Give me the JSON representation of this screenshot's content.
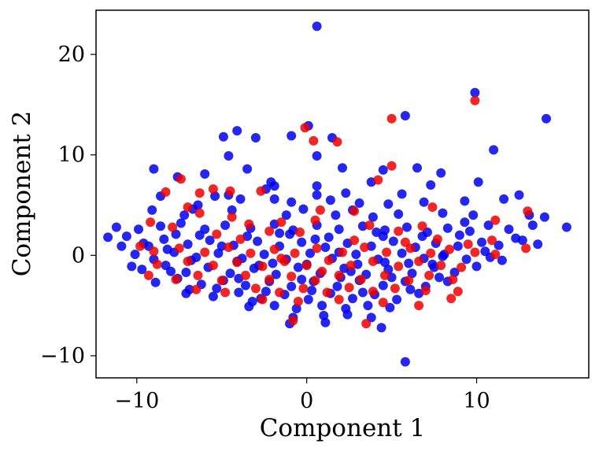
{
  "chart_data": {
    "type": "scatter",
    "title": "",
    "xlabel": "Component 1",
    "ylabel": "Component 2",
    "xlim": [
      -12.4,
      16.6
    ],
    "ylim": [
      -12.2,
      24.4
    ],
    "xticks": [
      -10,
      0,
      10
    ],
    "yticks": [
      -10,
      0,
      10,
      20
    ],
    "xtick_labels": [
      "−10",
      "0",
      "10"
    ],
    "ytick_labels": [
      "−10",
      "0",
      "10",
      "20"
    ],
    "grid": false,
    "legend": "none",
    "marker_alpha": 0.85,
    "series": [
      {
        "color": "#0000ee",
        "points": [
          [
            0.6,
            22.8
          ],
          [
            9.9,
            16.2
          ],
          [
            14.1,
            13.6
          ],
          [
            5.8,
            13.9
          ],
          [
            -4.1,
            12.4
          ],
          [
            -0.9,
            11.9
          ],
          [
            0.1,
            12.9
          ],
          [
            1.5,
            11.7
          ],
          [
            -3.0,
            11.7
          ],
          [
            -4.9,
            11.8
          ],
          [
            11.0,
            10.5
          ],
          [
            -4.6,
            9.9
          ],
          [
            0.6,
            9.9
          ],
          [
            -9.0,
            8.6
          ],
          [
            -6.0,
            8.1
          ],
          [
            -7.6,
            7.8
          ],
          [
            2.1,
            8.7
          ],
          [
            4.5,
            8.5
          ],
          [
            6.5,
            8.7
          ],
          [
            7.9,
            8.2
          ],
          [
            -3.5,
            8.6
          ],
          [
            -1.9,
            6.9
          ],
          [
            0.6,
            6.9
          ],
          [
            10.1,
            7.3
          ],
          [
            3.8,
            7.3
          ],
          [
            7.3,
            7.0
          ],
          [
            12.5,
            6.0
          ],
          [
            -8.6,
            5.9
          ],
          [
            -5.4,
            5.9
          ],
          [
            -1.9,
            5.6
          ],
          [
            -2.4,
            6.6
          ],
          [
            1.4,
            5.5
          ],
          [
            4.8,
            5.1
          ],
          [
            6.9,
            5.3
          ],
          [
            9.3,
            5.4
          ],
          [
            11.6,
            5.6
          ],
          [
            -9.1,
            4.5
          ],
          [
            -6.7,
            4.6
          ],
          [
            -4.4,
            4.5
          ],
          [
            -0.2,
            4.6
          ],
          [
            2.7,
            4.5
          ],
          [
            5.4,
            4.1
          ],
          [
            8.0,
            4.2
          ],
          [
            13.1,
            4.0
          ],
          [
            -11.2,
            2.8
          ],
          [
            -10.6,
            1.9
          ],
          [
            -9.9,
            2.6
          ],
          [
            -8.6,
            2.9
          ],
          [
            -7.4,
            3.2
          ],
          [
            -6.0,
            2.6
          ],
          [
            -4.8,
            3.0
          ],
          [
            -3.3,
            2.7
          ],
          [
            -1.9,
            3.1
          ],
          [
            -0.8,
            2.5
          ],
          [
            0.6,
            3.0
          ],
          [
            1.9,
            2.6
          ],
          [
            3.3,
            2.9
          ],
          [
            4.6,
            2.5
          ],
          [
            5.9,
            2.8
          ],
          [
            7.1,
            2.3
          ],
          [
            8.3,
            2.7
          ],
          [
            9.6,
            2.4
          ],
          [
            10.7,
            3.0
          ],
          [
            11.9,
            2.6
          ],
          [
            13.3,
            3.0
          ],
          [
            14.0,
            3.8
          ],
          [
            15.3,
            2.8
          ],
          [
            -11.7,
            1.8
          ],
          [
            -10.9,
            0.9
          ],
          [
            -9.6,
            1.2
          ],
          [
            -8.4,
            1.6
          ],
          [
            -7.0,
            1.1
          ],
          [
            -5.7,
            1.5
          ],
          [
            -4.3,
            1.0
          ],
          [
            -2.9,
            1.4
          ],
          [
            -1.6,
            0.9
          ],
          [
            -0.3,
            1.3
          ],
          [
            1.1,
            0.8
          ],
          [
            2.4,
            1.2
          ],
          [
            3.8,
            0.9
          ],
          [
            5.1,
            1.4
          ],
          [
            6.4,
            0.8
          ],
          [
            7.6,
            1.2
          ],
          [
            8.9,
            0.9
          ],
          [
            10.3,
            1.3
          ],
          [
            11.3,
            1.0
          ],
          [
            12.7,
            1.5
          ],
          [
            13.6,
            1.1
          ],
          [
            -10.1,
            0.1
          ],
          [
            -9.0,
            -0.4
          ],
          [
            -7.8,
            0.3
          ],
          [
            -6.5,
            -0.2
          ],
          [
            -5.2,
            0.2
          ],
          [
            -3.8,
            -0.3
          ],
          [
            -2.5,
            0.1
          ],
          [
            -1.2,
            -0.4
          ],
          [
            0.2,
            0.2
          ],
          [
            1.5,
            -0.3
          ],
          [
            2.9,
            0.1
          ],
          [
            4.2,
            -0.4
          ],
          [
            5.6,
            0.2
          ],
          [
            6.9,
            -0.3
          ],
          [
            8.1,
            0.1
          ],
          [
            9.4,
            -0.4
          ],
          [
            10.8,
            -0.2
          ],
          [
            -9.7,
            -1.4
          ],
          [
            -8.3,
            -1.0
          ],
          [
            -7.1,
            -1.7
          ],
          [
            -5.8,
            -1.2
          ],
          [
            -4.5,
            -1.8
          ],
          [
            -3.1,
            -1.3
          ],
          [
            -1.8,
            -1.9
          ],
          [
            -0.5,
            -1.2
          ],
          [
            0.8,
            -1.8
          ],
          [
            2.2,
            -1.3
          ],
          [
            3.5,
            -1.9
          ],
          [
            4.8,
            -1.4
          ],
          [
            6.2,
            -1.8
          ],
          [
            7.5,
            -1.2
          ],
          [
            8.7,
            -1.7
          ],
          [
            10.0,
            -1.1
          ],
          [
            -8.9,
            -2.7
          ],
          [
            -7.6,
            -2.3
          ],
          [
            -6.2,
            -2.9
          ],
          [
            -4.9,
            -2.5
          ],
          [
            -3.6,
            -3.0
          ],
          [
            -2.2,
            -2.6
          ],
          [
            -0.9,
            -3.1
          ],
          [
            0.4,
            -2.6
          ],
          [
            1.8,
            -3.1
          ],
          [
            3.1,
            -2.5
          ],
          [
            4.5,
            -3.0
          ],
          [
            5.8,
            -2.6
          ],
          [
            7.0,
            -3.1
          ],
          [
            8.3,
            -2.6
          ],
          [
            -7.1,
            -3.8
          ],
          [
            -5.5,
            -4.1
          ],
          [
            -4.0,
            -3.7
          ],
          [
            -2.7,
            -4.3
          ],
          [
            -1.3,
            -3.9
          ],
          [
            0.1,
            -4.4
          ],
          [
            1.4,
            -3.8
          ],
          [
            2.7,
            -4.3
          ],
          [
            4.0,
            -3.9
          ],
          [
            5.3,
            -4.4
          ],
          [
            6.6,
            -3.8
          ],
          [
            -3.4,
            -5.1
          ],
          [
            -1.9,
            -5.0
          ],
          [
            -0.6,
            -5.3
          ],
          [
            0.9,
            -5.0
          ],
          [
            2.3,
            -5.3
          ],
          [
            3.6,
            -5.0
          ],
          [
            4.9,
            -5.2
          ],
          [
            -0.8,
            -6.2
          ],
          [
            1.0,
            -6.0
          ],
          [
            2.4,
            -5.9
          ],
          [
            3.8,
            -6.2
          ],
          [
            -1.0,
            -6.8
          ],
          [
            1.1,
            -6.7
          ],
          [
            4.4,
            -7.2
          ],
          [
            5.8,
            -10.6
          ],
          [
            -6.4,
            5.0
          ],
          [
            -3.9,
            5.6
          ],
          [
            -0.9,
            5.3
          ],
          [
            2.3,
            6.2
          ],
          [
            5.6,
            6.1
          ],
          [
            -7.2,
            4.0
          ],
          [
            -1.2,
            4.0
          ],
          [
            3.9,
            3.8
          ],
          [
            9.8,
            4.0
          ],
          [
            -8.0,
            -1.6
          ],
          [
            -5.0,
            0.9
          ],
          [
            -3.5,
            1.9
          ],
          [
            -2.0,
            -0.8
          ],
          [
            0.0,
            -0.9
          ],
          [
            1.3,
            1.8
          ],
          [
            3.0,
            -0.9
          ],
          [
            4.5,
            1.9
          ],
          [
            6.0,
            -0.8
          ],
          [
            7.8,
            -2.2
          ],
          [
            9.0,
            2.0
          ],
          [
            -6.8,
            -0.5
          ],
          [
            -4.0,
            -2.3
          ],
          [
            -1.0,
            2.1
          ],
          [
            2.0,
            -2.2
          ],
          [
            5.0,
            -2.2
          ],
          [
            8.0,
            -0.1
          ],
          [
            11.5,
            -0.5
          ],
          [
            -9.3,
            0.9
          ],
          [
            -7.7,
            2.1
          ],
          [
            -5.3,
            -3.3
          ],
          [
            -2.8,
            -1.0
          ],
          [
            0.5,
            1.6
          ],
          [
            2.6,
            -1.6
          ],
          [
            4.1,
            2.3
          ],
          [
            6.8,
            1.9
          ],
          [
            9.3,
            3.3
          ],
          [
            12.3,
            1.7
          ],
          [
            -10.3,
            -1.1
          ],
          [
            -6.9,
            -3.4
          ],
          [
            -3.2,
            -4.6
          ],
          [
            0.3,
            -3.5
          ],
          [
            3.3,
            -3.7
          ],
          [
            6.1,
            -3.4
          ],
          [
            -2.1,
            7.3
          ],
          [
            1.7,
            4.0
          ],
          [
            -4.6,
            6.0
          ],
          [
            3.1,
            5.2
          ],
          [
            -6.3,
            2.0
          ],
          [
            7.4,
            -0.9
          ],
          [
            10.5,
            0.4
          ],
          [
            -8.2,
            0.6
          ],
          [
            -0.3,
            -2.4
          ],
          [
            1.9,
            0.3
          ],
          [
            -1.6,
            2.2
          ],
          [
            -4.1,
            -0.6
          ],
          [
            4.6,
            -0.7
          ],
          [
            -2.4,
            -3.6
          ],
          [
            0.6,
            6.0
          ]
        ]
      },
      {
        "color": "#ee0000",
        "points": [
          [
            9.9,
            15.4
          ],
          [
            5.0,
            13.6
          ],
          [
            -0.1,
            12.7
          ],
          [
            0.4,
            11.4
          ],
          [
            1.8,
            11.3
          ],
          [
            5.0,
            8.9
          ],
          [
            4.2,
            7.5
          ],
          [
            -7.4,
            7.6
          ],
          [
            -5.5,
            6.6
          ],
          [
            -4.5,
            6.4
          ],
          [
            -2.7,
            6.4
          ],
          [
            -8.3,
            6.3
          ],
          [
            -6.3,
            6.2
          ],
          [
            -7.0,
            4.8
          ],
          [
            -6.3,
            4.2
          ],
          [
            -4.4,
            3.8
          ],
          [
            -1.5,
            3.3
          ],
          [
            0.8,
            4.5
          ],
          [
            2.8,
            4.4
          ],
          [
            7.4,
            4.8
          ],
          [
            13.0,
            4.4
          ],
          [
            11.1,
            3.5
          ],
          [
            -9.2,
            3.3
          ],
          [
            -7.9,
            2.8
          ],
          [
            -5.3,
            2.1
          ],
          [
            -3.4,
            3.1
          ],
          [
            -2.2,
            2.4
          ],
          [
            0.5,
            3.5
          ],
          [
            3.7,
            3.0
          ],
          [
            5.4,
            2.4
          ],
          [
            6.8,
            2.9
          ],
          [
            7.7,
            1.6
          ],
          [
            9.5,
            1.1
          ],
          [
            10.9,
            1.5
          ],
          [
            12.9,
            0.7
          ],
          [
            -9.8,
            0.9
          ],
          [
            -9.0,
            0.4
          ],
          [
            -7.5,
            0.7
          ],
          [
            -6.0,
            0.3
          ],
          [
            -4.6,
            0.8
          ],
          [
            -3.3,
            0.2
          ],
          [
            -1.9,
            0.6
          ],
          [
            -0.7,
            0.2
          ],
          [
            0.6,
            0.7
          ],
          [
            2.1,
            0.3
          ],
          [
            3.4,
            0.8
          ],
          [
            4.7,
            0.3
          ],
          [
            6.1,
            0.7
          ],
          [
            7.3,
            0.2
          ],
          [
            8.4,
            0.6
          ],
          [
            9.9,
            0.3
          ],
          [
            11.1,
            0.1
          ],
          [
            -8.8,
            -0.9
          ],
          [
            -7.0,
            -0.6
          ],
          [
            -5.5,
            -1.0
          ],
          [
            -4.1,
            -0.7
          ],
          [
            -2.6,
            -1.1
          ],
          [
            -1.3,
            -0.6
          ],
          [
            0.0,
            -1.0
          ],
          [
            1.3,
            -0.5
          ],
          [
            2.6,
            -1.0
          ],
          [
            3.9,
            -0.6
          ],
          [
            5.4,
            -1.1
          ],
          [
            6.6,
            -0.6
          ],
          [
            7.9,
            -1.0
          ],
          [
            9.1,
            -1.2
          ],
          [
            -9.3,
            -2.0
          ],
          [
            -7.7,
            -2.4
          ],
          [
            -6.4,
            -2.0
          ],
          [
            -5.0,
            -2.5
          ],
          [
            -3.6,
            -2.0
          ],
          [
            -2.2,
            -2.4
          ],
          [
            -0.9,
            -2.1
          ],
          [
            0.5,
            -2.5
          ],
          [
            1.9,
            -2.0
          ],
          [
            3.2,
            -2.4
          ],
          [
            4.6,
            -2.0
          ],
          [
            6.0,
            -2.5
          ],
          [
            7.2,
            -2.0
          ],
          [
            8.6,
            -2.4
          ],
          [
            -6.5,
            -3.4
          ],
          [
            -4.8,
            -3.7
          ],
          [
            -3.0,
            -3.3
          ],
          [
            -1.6,
            -3.7
          ],
          [
            -0.2,
            -3.3
          ],
          [
            1.2,
            -3.7
          ],
          [
            2.5,
            -3.2
          ],
          [
            3.9,
            -3.6
          ],
          [
            5.2,
            -3.3
          ],
          [
            7.0,
            -3.5
          ],
          [
            8.9,
            -3.6
          ],
          [
            8.5,
            -4.3
          ],
          [
            -2.6,
            -4.4
          ],
          [
            -0.5,
            -4.6
          ],
          [
            1.9,
            -4.4
          ],
          [
            4.5,
            -4.7
          ],
          [
            6.6,
            -5.0
          ],
          [
            -0.8,
            -6.5
          ],
          [
            3.5,
            -6.8
          ],
          [
            -1.5,
            -0.3
          ],
          [
            0.9,
            -1.6
          ],
          [
            2.8,
            1.5
          ],
          [
            -3.9,
            1.6
          ],
          [
            5.8,
            1.3
          ],
          [
            -0.4,
            2.3
          ]
        ]
      }
    ]
  }
}
